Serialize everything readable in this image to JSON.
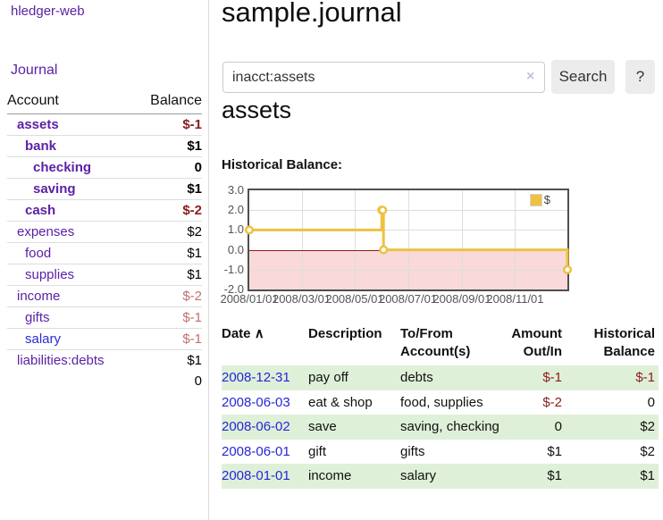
{
  "app": {
    "title": "hledger-web",
    "nav_journal": "Journal"
  },
  "header": {
    "title": "sample.journal"
  },
  "search": {
    "value": "inacct:assets",
    "clear_icon": "×",
    "button_label": "Search",
    "help_label": "?"
  },
  "main": {
    "account_heading": "assets",
    "chart_label": "Historical Balance:"
  },
  "sidebar": {
    "accounts_header": {
      "account": "Account",
      "balance": "Balance"
    },
    "accounts": [
      {
        "name": "assets",
        "balance": "$-1",
        "indent": 1,
        "bold": true,
        "balance_style": "neg"
      },
      {
        "name": "bank",
        "balance": "$1",
        "indent": 2,
        "bold": true,
        "balance_style": "pos"
      },
      {
        "name": "checking",
        "balance": "0",
        "indent": 3,
        "bold": true,
        "balance_style": "pos"
      },
      {
        "name": "saving",
        "balance": "$1",
        "indent": 3,
        "bold": true,
        "balance_style": "pos"
      },
      {
        "name": "cash",
        "balance": "$-2",
        "indent": 2,
        "bold": true,
        "balance_style": "neg"
      },
      {
        "name": "expenses",
        "balance": "$2",
        "indent": 1,
        "bold": false,
        "balance_style": "pos"
      },
      {
        "name": "food",
        "balance": "$1",
        "indent": 2,
        "bold": false,
        "balance_style": "pos"
      },
      {
        "name": "supplies",
        "balance": "$1",
        "indent": 2,
        "bold": false,
        "balance_style": "pos"
      },
      {
        "name": "income",
        "balance": "$-2",
        "indent": 1,
        "bold": false,
        "balance_style": "neg-muted"
      },
      {
        "name": "gifts",
        "balance": "$-1",
        "indent": 2,
        "bold": false,
        "balance_style": "neg-muted"
      },
      {
        "name": "salary",
        "balance": "$-1",
        "indent": 2,
        "bold": false,
        "balance_style": "neg-muted",
        "link_style": "blue"
      },
      {
        "name": "liabilities:debts",
        "balance": "$1",
        "indent": 1,
        "bold": false,
        "balance_style": "pos"
      }
    ],
    "total": "0"
  },
  "chart_data": {
    "type": "line",
    "title": "Historical Balance:",
    "step": true,
    "series": [
      {
        "name": "$",
        "color": "#edc240",
        "points": [
          {
            "x": "2008-01-01",
            "y": 1
          },
          {
            "x": "2008-06-01",
            "y": 2
          },
          {
            "x": "2008-06-02",
            "y": 2
          },
          {
            "x": "2008-06-03",
            "y": 0
          },
          {
            "x": "2008-12-31",
            "y": -1
          }
        ]
      }
    ],
    "x_range": [
      "2008-01-01",
      "2008-12-31"
    ],
    "x_ticks": [
      "2008/01/01",
      "2008/03/01",
      "2008/05/01",
      "2008/07/01",
      "2008/09/01",
      "2008/11/01"
    ],
    "y_ticks": [
      3.0,
      2.0,
      1.0,
      0.0,
      -1.0,
      -2.0
    ],
    "ylim": [
      -2,
      3
    ],
    "grid": true,
    "legend": "$",
    "legend_position": "top-right",
    "negative_region_color": "#f9d9d9",
    "zero_line_color": "#8b1a1a"
  },
  "transactions": {
    "headers": {
      "date": "Date",
      "sort": "∧",
      "description": "Description",
      "accounts": "To/From Account(s)",
      "amount": "Amount Out/In",
      "balance": "Historical Balance"
    },
    "rows": [
      {
        "date": "2008-12-31",
        "description": "pay off",
        "accounts": "debts",
        "amount": "$-1",
        "amount_neg": true,
        "balance": "$-1",
        "balance_neg": true,
        "striped": true
      },
      {
        "date": "2008-06-03",
        "description": "eat & shop",
        "accounts": "food, supplies",
        "amount": "$-2",
        "amount_neg": true,
        "balance": "0",
        "balance_neg": false,
        "striped": false
      },
      {
        "date": "2008-06-02",
        "description": "save",
        "accounts": "saving, checking",
        "amount": "0",
        "amount_neg": false,
        "balance": "$2",
        "balance_neg": false,
        "striped": true
      },
      {
        "date": "2008-06-01",
        "description": "gift",
        "accounts": "gifts",
        "amount": "$1",
        "amount_neg": false,
        "balance": "$2",
        "balance_neg": false,
        "striped": false
      },
      {
        "date": "2008-01-01",
        "description": "income",
        "accounts": "salary",
        "amount": "$1",
        "amount_neg": false,
        "balance": "$1",
        "balance_neg": false,
        "striped": true
      }
    ]
  },
  "colors": {
    "link_purple": "#5b21a5",
    "link_blue": "#2b2bd5",
    "date_link_blue": "#2626d9",
    "negative_strong": "#8b1c1c",
    "negative_muted": "#c36f6f",
    "row_stripe_green": "#dff0d8",
    "chart_line_gold": "#edc240",
    "chart_negative_bg": "#f9d9d9",
    "chart_zero_line": "#8b1a1a"
  }
}
